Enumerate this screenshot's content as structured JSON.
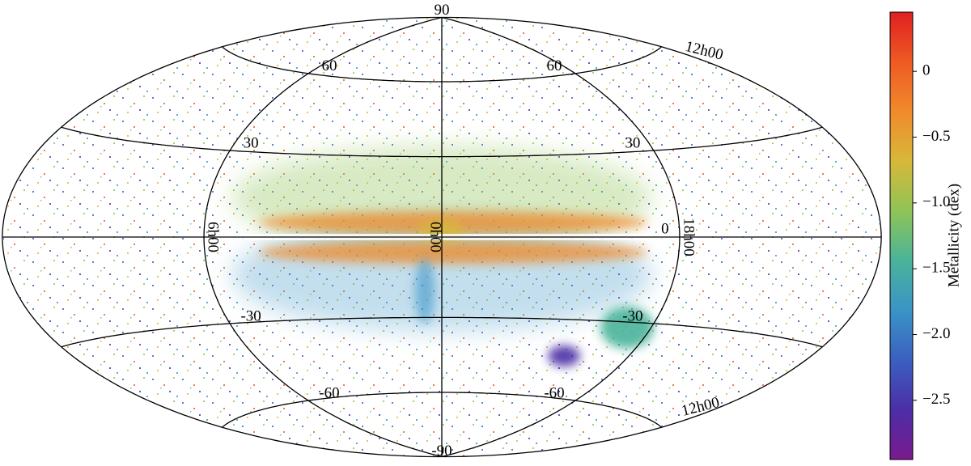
{
  "chart_data": {
    "type": "skymap",
    "projection": "hammer",
    "lat_ticks": [
      90,
      60,
      30,
      0,
      -30,
      -60,
      -90
    ],
    "lon_ticks": [
      {
        "value": 0,
        "label": "0h00"
      },
      {
        "value": 6,
        "label": "6h00"
      },
      {
        "value": 12,
        "label": "12h00"
      },
      {
        "value": 18,
        "label": "18h00"
      }
    ],
    "colorbar": {
      "label": "Metallicity  (dex)",
      "clim": [
        -2.95,
        0.45
      ],
      "ticks": [
        0,
        {
          "value": -0.5,
          "label": "−0.5"
        },
        {
          "value": -1,
          "label": "−1.0"
        },
        {
          "value": -1.5,
          "label": "−1.5"
        },
        {
          "value": -2,
          "label": "−2.0"
        },
        {
          "value": -2.5,
          "label": "−2.5"
        }
      ],
      "colormap": [
        "#7a1a8e",
        "#4c2ea6",
        "#3b5fc0",
        "#3a94c6",
        "#4ab39a",
        "#8fc456",
        "#d7b83a",
        "#f08a2c",
        "#ee5a24",
        "#e02020"
      ]
    }
  }
}
